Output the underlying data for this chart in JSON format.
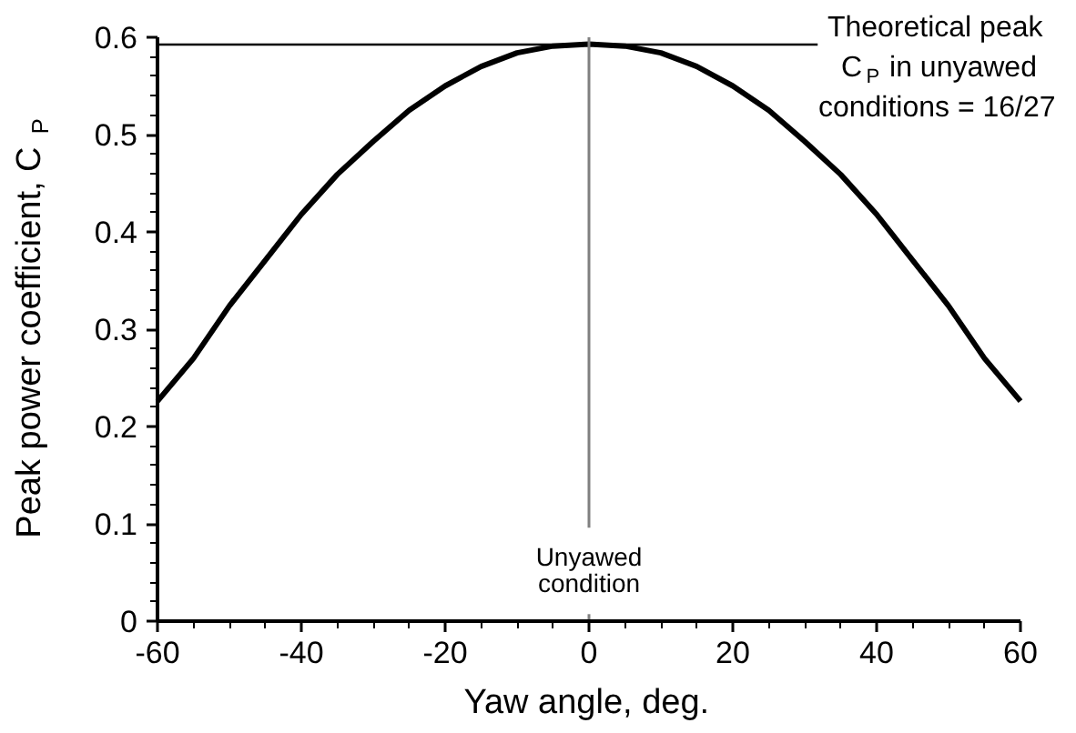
{
  "chart_data": {
    "type": "line",
    "xlabel": "Yaw angle, deg.",
    "ylabel": "Peak power coefficient, C$_{P}$",
    "x": [
      -60,
      -55,
      -50,
      -45,
      -40,
      -35,
      -30,
      -25,
      -20,
      -15,
      -10,
      -5,
      0,
      5,
      10,
      15,
      20,
      25,
      30,
      35,
      40,
      45,
      50,
      55,
      60
    ],
    "series": [
      {
        "color": "#000000",
        "values": [
          0.226,
          0.27,
          0.324,
          0.371,
          0.418,
          0.459,
          0.493,
          0.525,
          0.55,
          0.57,
          0.584,
          0.591,
          0.593,
          0.591,
          0.584,
          0.57,
          0.55,
          0.525,
          0.493,
          0.459,
          0.418,
          0.371,
          0.324,
          0.27,
          0.226
        ]
      }
    ],
    "xlim": [
      -60,
      60
    ],
    "ylim": [
      0,
      0.6
    ],
    "xticks": [
      -60,
      {
        "value": -55,
        "label": null
      },
      {
        "value": -50,
        "label": null
      },
      {
        "value": -45,
        "label": null
      },
      -40,
      {
        "value": -35,
        "label": null
      },
      {
        "value": -30,
        "label": null
      },
      {
        "value": -25,
        "label": null
      },
      -20,
      {
        "value": -15,
        "label": null
      },
      {
        "value": -10,
        "label": null
      },
      {
        "value": -5,
        "label": null
      },
      0,
      {
        "value": 5,
        "label": null
      },
      {
        "value": 10,
        "label": null
      },
      {
        "value": 15,
        "label": null
      },
      20,
      {
        "value": 25,
        "label": null
      },
      {
        "value": 30,
        "label": null
      },
      {
        "value": 35,
        "label": null
      },
      40,
      {
        "value": 45,
        "label": null
      },
      {
        "value": 50,
        "label": null
      },
      {
        "value": 55,
        "label": null
      },
      60
    ],
    "yticks": [
      0,
      {
        "value": 0.02,
        "label": null
      },
      {
        "value": 0.04,
        "label": null
      },
      {
        "value": 0.06,
        "label": null
      },
      {
        "value": 0.08,
        "label": null
      },
      0.1,
      {
        "value": 0.12,
        "label": null
      },
      {
        "value": 0.14,
        "label": null
      },
      {
        "value": 0.16,
        "label": null
      },
      {
        "value": 0.18,
        "label": null
      },
      0.2,
      {
        "value": 0.22,
        "label": null
      },
      {
        "value": 0.24,
        "label": null
      },
      {
        "value": 0.26,
        "label": null
      },
      {
        "value": 0.28,
        "label": null
      },
      0.3,
      {
        "value": 0.32,
        "label": null
      },
      {
        "value": 0.34,
        "label": null
      },
      {
        "value": 0.36,
        "label": null
      },
      {
        "value": 0.38,
        "label": null
      },
      0.4,
      {
        "value": 0.42,
        "label": null
      },
      {
        "value": 0.44,
        "label": null
      },
      {
        "value": 0.46,
        "label": null
      },
      {
        "value": 0.48,
        "label": null
      },
      0.5,
      {
        "value": 0.52,
        "label": null
      },
      {
        "value": 0.54,
        "label": null
      },
      {
        "value": 0.56,
        "label": null
      },
      {
        "value": 0.58,
        "label": null
      },
      0.6
    ],
    "ref_lines": [
      {
        "axis": "y",
        "value": 0.59259,
        "color": "#000000"
      },
      {
        "axis": "x",
        "value": 0,
        "label": "Unyawed\ncondition",
        "color": "#808080"
      }
    ],
    "annotations": [
      "Theoretical peak\nC$_{P}$ in unyawed\nconditions = 16/27"
    ],
    "grid": false,
    "marker": "none",
    "line_style": "solid"
  }
}
